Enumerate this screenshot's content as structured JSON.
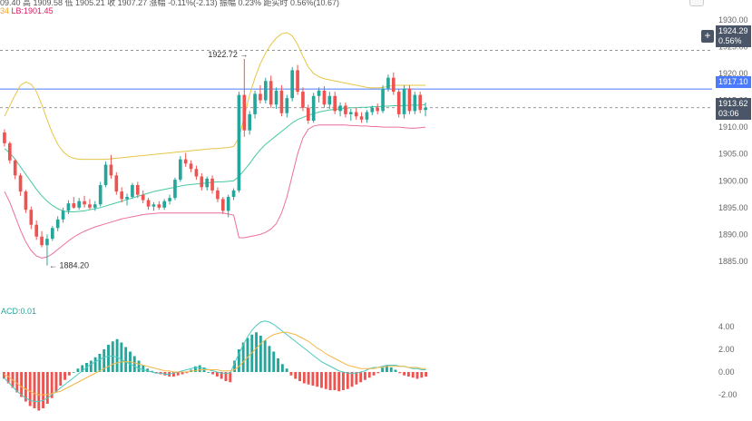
{
  "header": {
    "line1": "09.40  高 1909.58  低 1905.21  收 1907.27  涨幅 -0.11%(-2.13)  振幅 0.23%  距实时 0.56%(10.67)",
    "line2_mark": "34",
    "line2": "LB:1901.45"
  },
  "macd_label": "ACD:0.01",
  "plus_icon": "+",
  "price_tags": {
    "high_tag": {
      "value": "1924.29",
      "pct": "0.56%"
    },
    "blue_line": "1917.10",
    "current": {
      "value": "1913.62",
      "countdown": "03:06"
    }
  },
  "annotations": {
    "high": "1922.72",
    "low": "1884.20"
  },
  "colors": {
    "up": "#26a69a",
    "down": "#ef5350",
    "upper_band": "#e8c547",
    "lower_band": "#ec6fa0",
    "mid_band": "#46c8a0",
    "macd_line": "#4cc9c0",
    "signal_line": "#f2b84b",
    "blue_line": "#4a7bff",
    "dash_line": "#888888"
  },
  "chart_data": [
    {
      "type": "candlestick",
      "title": "",
      "ylabel": "",
      "ylim": [
        1882,
        1930
      ],
      "y_ticks": [
        "1885.00",
        "1890.00",
        "1895.00",
        "1900.00",
        "1905.00",
        "1910.00",
        "1915.00",
        "1920.00",
        "1925.00",
        "1930.00"
      ],
      "y_tick_values": [
        1885,
        1890,
        1895,
        1900,
        1905,
        1910,
        1915,
        1920,
        1925,
        1930
      ],
      "candles": [
        [
          1909.0,
          1909.6,
          1906.4,
          1907.0
        ],
        [
          1907.0,
          1907.3,
          1903.2,
          1903.8
        ],
        [
          1903.8,
          1904.0,
          1900.3,
          1901.0
        ],
        [
          1901.0,
          1901.4,
          1897.2,
          1898.0
        ],
        [
          1898.0,
          1898.3,
          1894.0,
          1894.6
        ],
        [
          1894.6,
          1895.2,
          1891.0,
          1891.8
        ],
        [
          1891.8,
          1892.6,
          1889.0,
          1889.6
        ],
        [
          1889.6,
          1890.6,
          1887.6,
          1888.0
        ],
        [
          1888.0,
          1890.0,
          1884.2,
          1889.2
        ],
        [
          1889.2,
          1891.6,
          1888.8,
          1891.2
        ],
        [
          1891.2,
          1893.4,
          1890.6,
          1892.8
        ],
        [
          1892.8,
          1895.0,
          1892.2,
          1894.4
        ],
        [
          1894.4,
          1896.4,
          1893.8,
          1895.8
        ],
        [
          1895.8,
          1897.0,
          1894.8,
          1895.0
        ],
        [
          1895.0,
          1896.8,
          1894.6,
          1896.2
        ],
        [
          1896.2,
          1897.2,
          1895.0,
          1895.6
        ],
        [
          1895.6,
          1896.6,
          1894.6,
          1895.0
        ],
        [
          1895.0,
          1896.2,
          1894.4,
          1895.6
        ],
        [
          1895.6,
          1899.8,
          1895.2,
          1899.2
        ],
        [
          1899.2,
          1903.6,
          1898.8,
          1903.0
        ],
        [
          1903.0,
          1904.8,
          1900.4,
          1901.0
        ],
        [
          1901.0,
          1901.6,
          1897.4,
          1898.0
        ],
        [
          1898.0,
          1898.8,
          1896.0,
          1896.6
        ],
        [
          1896.6,
          1897.6,
          1895.4,
          1897.0
        ],
        [
          1897.0,
          1899.6,
          1896.6,
          1899.2
        ],
        [
          1899.2,
          1899.8,
          1896.8,
          1897.4
        ],
        [
          1897.4,
          1898.2,
          1895.8,
          1896.4
        ],
        [
          1896.4,
          1896.8,
          1894.6,
          1895.2
        ],
        [
          1895.2,
          1896.0,
          1894.4,
          1895.6
        ],
        [
          1895.6,
          1896.2,
          1894.6,
          1895.0
        ],
        [
          1895.0,
          1896.6,
          1894.6,
          1896.2
        ],
        [
          1896.2,
          1897.4,
          1895.6,
          1896.8
        ],
        [
          1896.8,
          1900.6,
          1896.4,
          1900.2
        ],
        [
          1900.2,
          1904.6,
          1899.8,
          1904.0
        ],
        [
          1904.0,
          1905.2,
          1902.6,
          1903.2
        ],
        [
          1903.2,
          1903.8,
          1901.6,
          1902.2
        ],
        [
          1902.2,
          1902.8,
          1900.2,
          1900.8
        ],
        [
          1900.8,
          1901.4,
          1898.2,
          1898.8
        ],
        [
          1898.8,
          1900.8,
          1898.2,
          1900.4
        ],
        [
          1900.4,
          1901.0,
          1897.6,
          1898.2
        ],
        [
          1898.2,
          1898.8,
          1896.0,
          1896.6
        ],
        [
          1896.6,
          1897.0,
          1893.8,
          1894.4
        ],
        [
          1894.4,
          1897.4,
          1893.2,
          1897.0
        ],
        [
          1897.0,
          1898.6,
          1896.4,
          1898.2
        ],
        [
          1898.2,
          1916.6,
          1897.8,
          1916.0
        ],
        [
          1916.0,
          1922.7,
          1908.2,
          1909.4
        ],
        [
          1909.4,
          1913.0,
          1908.6,
          1912.4
        ],
        [
          1912.4,
          1916.8,
          1911.6,
          1916.2
        ],
        [
          1916.2,
          1917.8,
          1914.4,
          1915.0
        ],
        [
          1915.0,
          1919.2,
          1914.4,
          1918.6
        ],
        [
          1918.6,
          1919.6,
          1913.6,
          1914.2
        ],
        [
          1914.2,
          1917.4,
          1913.4,
          1916.8
        ],
        [
          1916.8,
          1917.8,
          1912.0,
          1912.6
        ],
        [
          1912.6,
          1916.0,
          1911.8,
          1915.4
        ],
        [
          1915.4,
          1921.2,
          1914.8,
          1920.6
        ],
        [
          1920.6,
          1921.6,
          1916.0,
          1916.6
        ],
        [
          1916.6,
          1917.4,
          1913.0,
          1913.6
        ],
        [
          1913.6,
          1914.2,
          1910.6,
          1911.2
        ],
        [
          1911.2,
          1916.4,
          1910.8,
          1915.8
        ],
        [
          1915.8,
          1917.4,
          1914.6,
          1916.8
        ],
        [
          1916.8,
          1917.6,
          1913.6,
          1914.2
        ],
        [
          1914.2,
          1916.6,
          1913.4,
          1915.8
        ],
        [
          1915.8,
          1916.6,
          1912.4,
          1913.0
        ],
        [
          1913.0,
          1914.6,
          1912.0,
          1914.0
        ],
        [
          1914.0,
          1914.6,
          1911.8,
          1912.4
        ],
        [
          1912.4,
          1913.4,
          1911.2,
          1912.8
        ],
        [
          1912.8,
          1913.6,
          1911.4,
          1912.0
        ],
        [
          1912.0,
          1912.8,
          1910.8,
          1911.4
        ],
        [
          1911.4,
          1913.2,
          1910.8,
          1912.8
        ],
        [
          1912.8,
          1914.0,
          1912.2,
          1913.6
        ],
        [
          1913.6,
          1914.4,
          1912.4,
          1913.0
        ],
        [
          1913.0,
          1917.8,
          1912.6,
          1917.2
        ],
        [
          1917.2,
          1919.8,
          1916.6,
          1919.2
        ],
        [
          1919.2,
          1920.2,
          1916.0,
          1916.6
        ],
        [
          1916.6,
          1917.2,
          1911.8,
          1912.4
        ],
        [
          1912.4,
          1917.8,
          1911.6,
          1917.2
        ],
        [
          1917.2,
          1917.8,
          1912.4,
          1913.0
        ],
        [
          1913.0,
          1916.6,
          1912.4,
          1916.0
        ],
        [
          1916.0,
          1916.6,
          1912.6,
          1913.2
        ],
        [
          1913.2,
          1914.6,
          1912.0,
          1913.6
        ]
      ],
      "upper_band": [
        1912.0,
        1914.0,
        1916.0,
        1917.8,
        1918.4,
        1918.0,
        1916.6,
        1914.2,
        1911.4,
        1908.8,
        1906.8,
        1905.4,
        1904.6,
        1904.2,
        1904.0,
        1904.0,
        1904.0,
        1904.0,
        1904.0,
        1904.0,
        1904.1,
        1904.2,
        1904.3,
        1904.4,
        1904.5,
        1904.6,
        1904.7,
        1904.8,
        1904.9,
        1905.0,
        1905.1,
        1905.2,
        1905.3,
        1905.4,
        1905.5,
        1905.6,
        1905.7,
        1905.8,
        1905.9,
        1906.0,
        1906.0,
        1906.1,
        1906.2,
        1906.4,
        1908.0,
        1912.0,
        1916.0,
        1919.2,
        1921.8,
        1923.8,
        1925.4,
        1926.6,
        1927.4,
        1927.6,
        1927.0,
        1925.4,
        1923.2,
        1921.2,
        1920.0,
        1919.4,
        1919.0,
        1918.8,
        1918.6,
        1918.4,
        1918.2,
        1918.0,
        1917.8,
        1917.6,
        1917.4,
        1917.3,
        1917.3,
        1917.4,
        1917.6,
        1917.8,
        1917.8,
        1917.8,
        1917.8,
        1917.8,
        1917.8,
        1917.8
      ],
      "mid_band": [
        1906.0,
        1905.2,
        1904.0,
        1902.6,
        1901.2,
        1899.8,
        1898.4,
        1897.2,
        1896.2,
        1895.4,
        1894.8,
        1894.4,
        1894.2,
        1894.2,
        1894.3,
        1894.4,
        1894.6,
        1894.8,
        1895.0,
        1895.3,
        1895.6,
        1895.9,
        1896.2,
        1896.5,
        1896.8,
        1897.1,
        1897.4,
        1897.7,
        1898.0,
        1898.2,
        1898.4,
        1898.6,
        1898.8,
        1899.0,
        1899.2,
        1899.3,
        1899.4,
        1899.5,
        1899.6,
        1899.7,
        1899.8,
        1899.8,
        1899.9,
        1900.0,
        1900.8,
        1902.0,
        1903.2,
        1904.6,
        1905.8,
        1906.8,
        1907.6,
        1908.4,
        1909.2,
        1910.0,
        1910.8,
        1911.4,
        1911.8,
        1912.2,
        1912.5,
        1912.8,
        1913.0,
        1913.2,
        1913.3,
        1913.4,
        1913.5,
        1913.6,
        1913.6,
        1913.7,
        1913.7,
        1913.8,
        1913.8,
        1913.9,
        1913.9,
        1914.0,
        1914.0,
        1914.0,
        1914.1,
        1914.1,
        1914.1,
        1914.2
      ],
      "lower_band": [
        1898.0,
        1896.0,
        1893.4,
        1890.8,
        1888.6,
        1887.0,
        1886.0,
        1885.6,
        1885.8,
        1886.4,
        1887.2,
        1888.0,
        1888.8,
        1889.5,
        1890.1,
        1890.6,
        1891.0,
        1891.4,
        1891.7,
        1892.0,
        1892.3,
        1892.6,
        1892.9,
        1893.1,
        1893.3,
        1893.5,
        1893.7,
        1893.8,
        1893.9,
        1894.0,
        1894.0,
        1894.0,
        1894.0,
        1894.0,
        1894.0,
        1894.0,
        1894.0,
        1894.0,
        1894.0,
        1894.0,
        1894.0,
        1894.0,
        1893.8,
        1893.6,
        1889.4,
        1889.4,
        1889.6,
        1889.8,
        1890.0,
        1890.4,
        1891.0,
        1892.0,
        1894.0,
        1897.0,
        1901.0,
        1905.0,
        1908.0,
        1909.6,
        1910.2,
        1910.4,
        1910.4,
        1910.4,
        1910.4,
        1910.4,
        1910.4,
        1910.3,
        1910.3,
        1910.2,
        1910.2,
        1910.1,
        1910.1,
        1910.0,
        1910.0,
        1910.0,
        1910.0,
        1909.9,
        1909.8,
        1909.8,
        1909.9,
        1910.0
      ],
      "horizontal_lines": {
        "high_dash": 1924.29,
        "blue": 1917.1,
        "current_dash": 1913.62
      }
    },
    {
      "type": "bar",
      "title": "MACD",
      "ylim": [
        -3.6,
        5.0
      ],
      "y_ticks": [
        "4.00",
        "2.00",
        "0.00",
        "-2.00"
      ],
      "y_tick_values": [
        4,
        2,
        0,
        -2
      ],
      "histogram": [
        -0.6,
        -1.0,
        -1.4,
        -1.8,
        -2.2,
        -2.6,
        -3.0,
        -3.2,
        -3.4,
        -3.2,
        -2.8,
        -2.3,
        -1.8,
        -1.2,
        -0.7,
        -0.3,
        0.0,
        0.3,
        0.6,
        0.8,
        1.0,
        1.3,
        1.6,
        2.0,
        2.4,
        2.7,
        2.9,
        2.6,
        2.2,
        1.8,
        1.4,
        1.0,
        0.6,
        0.3,
        0.1,
        -0.1,
        -0.2,
        -0.3,
        -0.4,
        -0.4,
        -0.3,
        -0.2,
        -0.1,
        0.2,
        0.5,
        0.6,
        0.4,
        0.0,
        -0.2,
        -0.4,
        -0.6,
        -0.8,
        -0.9,
        1.0,
        2.0,
        2.6,
        3.0,
        3.3,
        3.5,
        3.2,
        2.8,
        2.3,
        1.8,
        1.2,
        0.7,
        0.3,
        -0.3,
        -0.6,
        -0.8,
        -1.0,
        -1.1,
        -1.2,
        -1.3,
        -1.4,
        -1.5,
        -1.6,
        -1.6,
        -1.7,
        -1.6,
        -1.5,
        -1.3,
        -1.1,
        -0.9,
        -0.7,
        -0.5,
        -0.3,
        -0.1,
        0.4,
        0.6,
        0.4,
        0.2,
        -0.1,
        -0.3,
        -0.4,
        -0.5,
        -0.6,
        -0.5,
        -0.4
      ],
      "macd_line": [
        -0.5,
        -0.9,
        -1.3,
        -1.7,
        -2.0,
        -2.3,
        -2.5,
        -2.6,
        -2.6,
        -2.5,
        -2.3,
        -2.0,
        -1.7,
        -1.4,
        -1.1,
        -0.8,
        -0.5,
        -0.2,
        0.1,
        0.4,
        0.7,
        0.9,
        1.1,
        1.3,
        1.4,
        1.4,
        1.3,
        1.1,
        0.9,
        0.7,
        0.5,
        0.3,
        0.2,
        0.1,
        0.0,
        -0.1,
        -0.1,
        -0.2,
        -0.2,
        -0.1,
        0.0,
        0.1,
        0.2,
        0.3,
        0.4,
        0.4,
        0.3,
        0.2,
        0.1,
        0.0,
        -0.1,
        -0.1,
        -0.1,
        0.8,
        1.6,
        2.4,
        3.1,
        3.7,
        4.1,
        4.4,
        4.5,
        4.4,
        4.2,
        3.9,
        3.6,
        3.3,
        3.0,
        2.7,
        2.4,
        2.1,
        1.8,
        1.5,
        1.2,
        0.9,
        0.7,
        0.5,
        0.3,
        0.1,
        0.0,
        -0.1,
        -0.1,
        -0.1,
        0.0,
        0.1,
        0.3,
        0.4,
        0.4,
        0.5,
        0.6,
        0.6,
        0.6,
        0.5,
        0.5,
        0.4,
        0.3,
        0.3,
        0.2,
        0.2
      ],
      "signal_line": [
        -0.2,
        -0.4,
        -0.7,
        -1.0,
        -1.3,
        -1.5,
        -1.7,
        -1.9,
        -2.0,
        -2.0,
        -2.0,
        -1.9,
        -1.8,
        -1.7,
        -1.5,
        -1.3,
        -1.1,
        -0.9,
        -0.7,
        -0.5,
        -0.3,
        -0.1,
        0.1,
        0.3,
        0.5,
        0.7,
        0.8,
        0.9,
        0.9,
        0.9,
        0.8,
        0.7,
        0.6,
        0.5,
        0.4,
        0.3,
        0.2,
        0.1,
        0.1,
        0.0,
        0.0,
        0.0,
        0.0,
        0.1,
        0.1,
        0.2,
        0.2,
        0.2,
        0.2,
        0.2,
        0.1,
        0.1,
        0.1,
        0.2,
        0.5,
        0.9,
        1.3,
        1.7,
        2.1,
        2.5,
        2.8,
        3.1,
        3.3,
        3.4,
        3.5,
        3.5,
        3.4,
        3.3,
        3.1,
        2.9,
        2.7,
        2.4,
        2.1,
        1.9,
        1.6,
        1.4,
        1.2,
        1.0,
        0.8,
        0.6,
        0.5,
        0.4,
        0.3,
        0.3,
        0.3,
        0.3,
        0.4,
        0.4,
        0.5,
        0.5,
        0.5,
        0.5,
        0.5,
        0.4,
        0.4,
        0.4,
        0.3,
        0.3
      ]
    }
  ]
}
